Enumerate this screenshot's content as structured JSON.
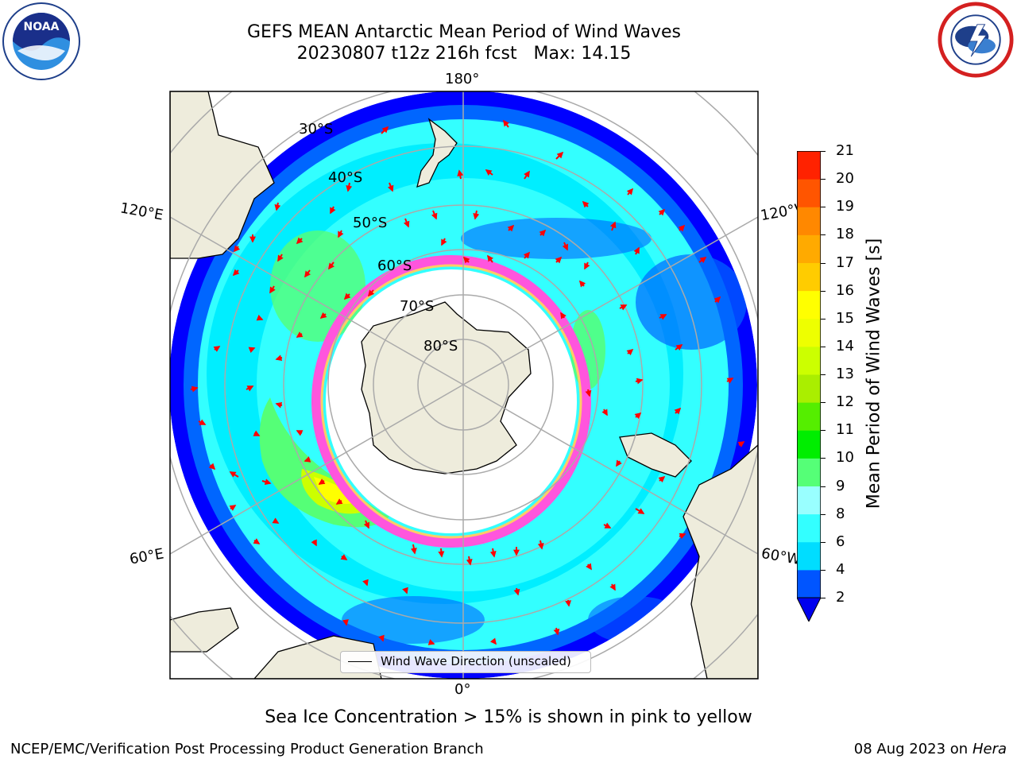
{
  "title": {
    "line1": "GEFS MEAN Antarctic Mean Period of Wind Waves",
    "line2": "20230807 t12z 216h fcst   Max: 14.15"
  },
  "logos": {
    "left": {
      "icon": "noaa-logo-icon",
      "text": "NOAA"
    },
    "right": {
      "icon": "nws-logo-icon"
    }
  },
  "map": {
    "projection": "south-polar-stereographic",
    "longitude_labels": [
      "180°",
      "120°E",
      "120°W",
      "60°E",
      "60°W",
      "0°"
    ],
    "latitude_labels": [
      "30°S",
      "40°S",
      "50°S",
      "60°S",
      "70°S",
      "80°S"
    ],
    "land_color": "#eeecdc",
    "ocean_colors": {
      "low": "#0000ff",
      "mid": "#00ffff",
      "high": "#ffff00"
    }
  },
  "legend": {
    "label": "Wind Wave Direction (unscaled)"
  },
  "colorbar": {
    "title": "Mean Period of Wind Waves [s]",
    "ticks": [
      "2",
      "4",
      "6",
      "8",
      "9",
      "10",
      "11",
      "12",
      "13",
      "14",
      "15",
      "16",
      "17",
      "18",
      "19",
      "20",
      "21"
    ],
    "colors": [
      "#0055ff",
      "#00ddff",
      "#33ffff",
      "#99ffff",
      "#55ff77",
      "#00ee00",
      "#55ee00",
      "#aaee00",
      "#ccff00",
      "#eeff00",
      "#ffff00",
      "#ffcc00",
      "#ffaa00",
      "#ff8800",
      "#ff5500",
      "#ff2200"
    ],
    "under_color": "#0000ee"
  },
  "ice_note": "Sea Ice Concentration > 15% is shown in pink to yellow",
  "footer": {
    "left": "NCEP/EMC/Verification Post Processing Product Generation Branch",
    "right_date": "08 Aug 2023 on",
    "right_host": "Hera"
  }
}
